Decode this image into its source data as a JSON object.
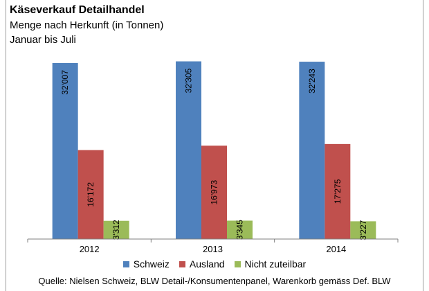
{
  "chart_data": {
    "type": "bar",
    "title": "Käseverkauf Detailhandel",
    "subtitle": "Menge nach Herkunft (in Tonnen)",
    "subtitle2": "Januar bis Juli",
    "categories": [
      "2012",
      "2013",
      "2014"
    ],
    "series": [
      {
        "name": "Schweiz",
        "color": "#4f81bd",
        "values": [
          32007,
          32305,
          32243
        ],
        "labels": [
          "32'007",
          "32'305",
          "32'243"
        ]
      },
      {
        "name": "Ausland",
        "color": "#c0504d",
        "values": [
          16172,
          16973,
          17275
        ],
        "labels": [
          "16'172",
          "16'973",
          "17'275"
        ]
      },
      {
        "name": "Nicht zuteilbar",
        "color": "#9bbb59",
        "values": [
          3312,
          3345,
          3227
        ],
        "labels": [
          "3'312",
          "3'345",
          "3'227"
        ]
      }
    ],
    "ylim": [
      0,
      32500
    ],
    "grid": false,
    "legend_position": "bottom",
    "source": "Quelle: Nielsen Schweiz, BLW Detail-/Konsumentenpanel, Warenkorb gemäss Def. BLW"
  }
}
